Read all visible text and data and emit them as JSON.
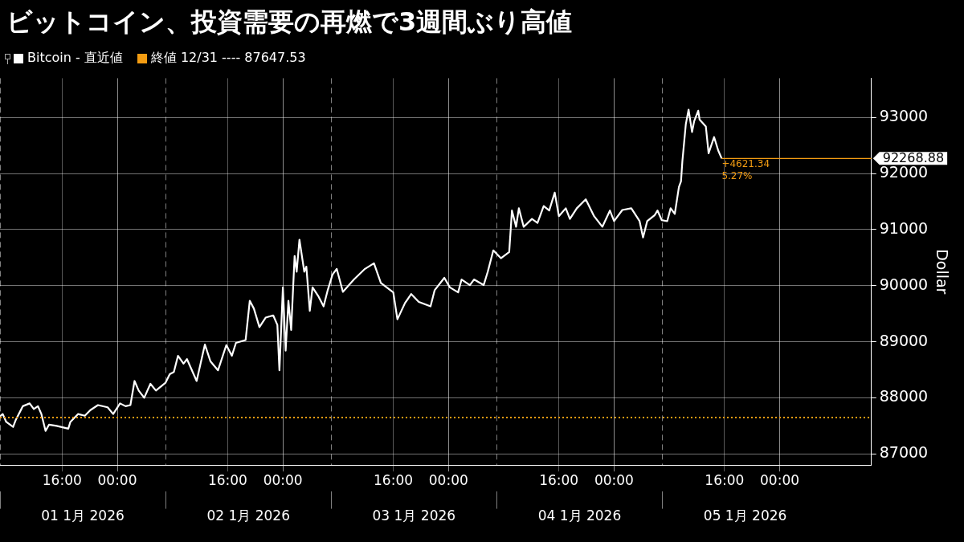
{
  "chart_data": {
    "type": "line",
    "title": "ビットコイン、投資需要の再燃で3週間ぶり高値",
    "ylabel": "Dollar",
    "legend": "top left",
    "grid": true,
    "marker": "none",
    "line_style": "solid",
    "xlim": [
      "2026-01-01T07:00",
      "2026-01-06T13:18"
    ],
    "ylim": [
      86800,
      93700
    ],
    "yticks": [
      87000,
      88000,
      89000,
      90000,
      91000,
      92000,
      93000
    ],
    "xticks": [
      {
        "value": "2026-01-01T16:00",
        "label": "16:00"
      },
      {
        "value": "2026-01-02T00:00",
        "label": "00:00"
      },
      {
        "value": "2026-01-02T16:00",
        "label": "16:00"
      },
      {
        "value": "2026-01-03T00:00",
        "label": "00:00"
      },
      {
        "value": "2026-01-03T16:00",
        "label": "16:00"
      },
      {
        "value": "2026-01-04T00:00",
        "label": "00:00"
      },
      {
        "value": "2026-01-04T16:00",
        "label": "16:00"
      },
      {
        "value": "2026-01-05T00:00",
        "label": "00:00"
      },
      {
        "value": "2026-01-05T16:00",
        "label": "16:00"
      },
      {
        "value": "2026-01-06T00:00",
        "label": "00:00"
      }
    ],
    "x2lim": [
      "2026-01-01T07:00",
      "2026-01-06T13:18"
    ],
    "x2ticks": [
      {
        "value": "2026-01-01T07:00",
        "label": null
      },
      {
        "value": "2026-01-01T19:00",
        "label": "01 1月 2026"
      },
      {
        "value": "2026-01-02T07:00",
        "label": null
      },
      {
        "value": "2026-01-02T19:00",
        "label": "02 1月 2026"
      },
      {
        "value": "2026-01-03T07:00",
        "label": null
      },
      {
        "value": "2026-01-03T19:00",
        "label": "03 1月 2026"
      },
      {
        "value": "2026-01-04T07:00",
        "label": null
      },
      {
        "value": "2026-01-04T19:00",
        "label": "04 1月 2026"
      },
      {
        "value": "2026-01-05T07:00",
        "label": null
      },
      {
        "value": "2026-01-05T19:00",
        "label": "05 1月 2026"
      }
    ],
    "ref_lines": [
      {
        "axis": "y",
        "value": 87647.53,
        "label": "終値 12/31 ---- 87647.53",
        "color": "#f39c12",
        "line_style": "dotted"
      }
    ],
    "annotations": [
      {
        "text": "92268.88",
        "x": "2026-01-05T15:36",
        "y": 92268.88
      },
      {
        "text": "+4621.34",
        "x": "2026-01-05T15:36",
        "y": 92268.88
      },
      {
        "text": "5.27%",
        "x": "2026-01-05T15:36",
        "y": 92268.88
      }
    ],
    "series": [
      {
        "name": "Bitcoin - 直近値",
        "color": "#ffffff",
        "x": [
          "2026-01-01T07:00",
          "2026-01-01T07:24",
          "2026-01-01T07:54",
          "2026-01-01T08:54",
          "2026-01-01T09:18",
          "2026-01-01T10:06",
          "2026-01-01T10:18",
          "2026-01-01T11:18",
          "2026-01-01T11:54",
          "2026-01-01T12:30",
          "2026-01-01T13:00",
          "2026-01-01T13:36",
          "2026-01-01T14:06",
          "2026-01-01T15:12",
          "2026-01-01T16:54",
          "2026-01-01T17:12",
          "2026-01-01T18:18",
          "2026-01-01T19:18",
          "2026-01-01T20:06",
          "2026-01-01T21:12",
          "2026-01-01T22:36",
          "2026-01-01T23:24",
          "2026-01-02T00:24",
          "2026-01-02T01:12",
          "2026-01-02T01:54",
          "2026-01-02T02:30",
          "2026-01-02T03:06",
          "2026-01-02T03:54",
          "2026-01-02T04:48",
          "2026-01-02T05:36",
          "2026-01-02T07:00",
          "2026-01-02T07:36",
          "2026-01-02T08:12",
          "2026-01-02T08:48",
          "2026-01-02T09:36",
          "2026-01-02T10:06",
          "2026-01-02T11:30",
          "2026-01-02T12:24",
          "2026-01-02T12:42",
          "2026-01-02T13:30",
          "2026-01-02T14:36",
          "2026-01-02T15:48",
          "2026-01-02T16:36",
          "2026-01-02T17:12",
          "2026-01-02T18:36",
          "2026-01-02T19:12",
          "2026-01-02T19:48",
          "2026-01-02T20:36",
          "2026-01-02T21:30",
          "2026-01-02T22:36",
          "2026-01-02T23:12",
          "2026-01-02T23:30",
          "2026-01-03T00:00",
          "2026-01-03T00:24",
          "2026-01-03T00:48",
          "2026-01-03T01:12",
          "2026-01-03T01:42",
          "2026-01-03T02:00",
          "2026-01-03T02:24",
          "2026-01-03T03:06",
          "2026-01-03T03:24",
          "2026-01-03T03:54",
          "2026-01-03T04:18",
          "2026-01-03T05:06",
          "2026-01-03T05:54",
          "2026-01-03T06:30",
          "2026-01-03T07:12",
          "2026-01-03T07:48",
          "2026-01-03T08:42",
          "2026-01-03T10:18",
          "2026-01-03T11:54",
          "2026-01-03T13:12",
          "2026-01-03T14:12",
          "2026-01-03T16:00",
          "2026-01-03T16:36",
          "2026-01-03T17:42",
          "2026-01-03T18:36",
          "2026-01-03T19:42",
          "2026-01-03T21:24",
          "2026-01-03T22:00",
          "2026-01-03T23:24",
          "2026-01-04T00:12",
          "2026-01-04T01:24",
          "2026-01-04T01:54",
          "2026-01-04T03:06",
          "2026-01-04T03:42",
          "2026-01-04T05:06",
          "2026-01-04T05:42",
          "2026-01-04T06:30",
          "2026-01-04T07:36",
          "2026-01-04T08:48",
          "2026-01-04T09:12",
          "2026-01-04T09:48",
          "2026-01-04T10:12",
          "2026-01-04T10:54",
          "2026-01-04T12:06",
          "2026-01-04T12:54",
          "2026-01-04T13:48",
          "2026-01-04T14:36",
          "2026-01-04T15:24",
          "2026-01-04T16:00",
          "2026-01-04T17:00",
          "2026-01-04T17:36",
          "2026-01-04T18:36",
          "2026-01-04T19:54",
          "2026-01-04T21:06",
          "2026-01-04T22:18",
          "2026-01-04T23:24",
          "2026-01-05T00:00",
          "2026-01-05T01:12",
          "2026-01-05T02:30",
          "2026-01-05T03:42",
          "2026-01-05T04:12",
          "2026-01-05T04:48",
          "2026-01-05T05:54",
          "2026-01-05T06:18",
          "2026-01-05T06:54",
          "2026-01-05T07:42",
          "2026-01-05T08:12",
          "2026-01-05T08:48",
          "2026-01-05T09:24",
          "2026-01-05T09:42",
          "2026-01-05T09:54",
          "2026-01-05T10:24",
          "2026-01-05T10:48",
          "2026-01-05T11:18",
          "2026-01-05T11:36",
          "2026-01-05T12:12",
          "2026-01-05T12:24",
          "2026-01-05T13:18",
          "2026-01-05T13:42",
          "2026-01-05T14:30",
          "2026-01-05T15:06",
          "2026-01-05T15:36"
        ],
        "values": [
          87670,
          87710,
          87570,
          87480,
          87610,
          87800,
          87850,
          87900,
          87800,
          87850,
          87710,
          87410,
          87520,
          87500,
          87450,
          87570,
          87710,
          87680,
          87780,
          87870,
          87830,
          87710,
          87900,
          87850,
          87870,
          88300,
          88130,
          88000,
          88250,
          88130,
          88270,
          88420,
          88460,
          88750,
          88610,
          88690,
          88300,
          88790,
          88950,
          88650,
          88490,
          88940,
          88750,
          88980,
          89030,
          89730,
          89590,
          89260,
          89430,
          89470,
          89300,
          88490,
          89970,
          88840,
          89730,
          89210,
          90530,
          90250,
          90820,
          90250,
          90340,
          89550,
          89970,
          89820,
          89630,
          89920,
          90200,
          90300,
          89890,
          90110,
          90300,
          90400,
          90050,
          89880,
          89400,
          89690,
          89850,
          89710,
          89630,
          89920,
          90140,
          89970,
          89880,
          90110,
          90010,
          90110,
          90010,
          90250,
          90630,
          90490,
          90600,
          91340,
          91050,
          91380,
          91050,
          91190,
          91120,
          91420,
          91340,
          91660,
          91240,
          91380,
          91190,
          91380,
          91540,
          91240,
          91050,
          91340,
          91150,
          91350,
          91380,
          91150,
          90860,
          91150,
          91260,
          91340,
          91170,
          91150,
          91380,
          91280,
          91760,
          91860,
          92220,
          92880,
          93140,
          92740,
          92930,
          93120,
          92960,
          92840,
          92360,
          92650,
          92410,
          92268.88
        ]
      }
    ]
  }
}
